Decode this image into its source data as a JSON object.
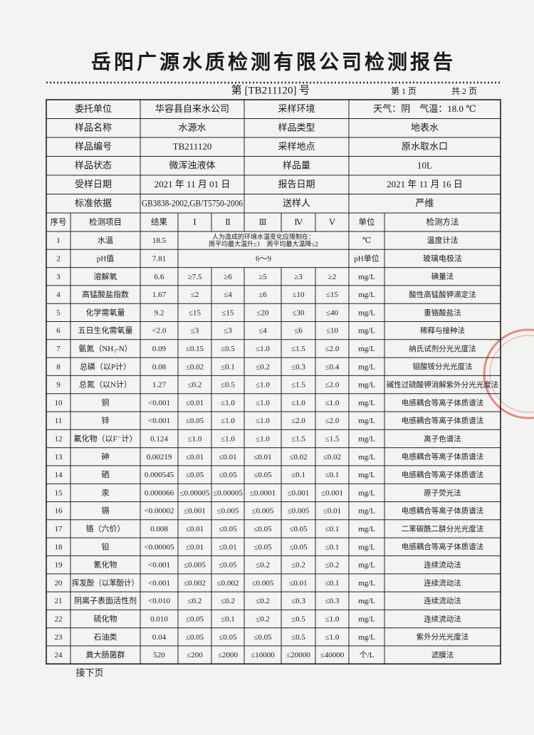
{
  "header": {
    "title": "岳阳广源水质检测有限公司检测报告",
    "report_no": "第 [TB211120] 号",
    "page": "第 1 页",
    "total": "共 2 页"
  },
  "info": {
    "rows": [
      [
        "委托单位",
        "华容县自来水公司",
        "采样环境",
        "天气：阴　气温：18.0 ℃"
      ],
      [
        "样品名称",
        "水源水",
        "样品类型",
        "地表水"
      ],
      [
        "样品编号",
        "TB211120",
        "采样地点",
        "原水取水口"
      ],
      [
        "样品状态",
        "微浑浊液体",
        "样品量",
        "10L"
      ],
      [
        "受样日期",
        "2021 年 11 月 01 日",
        "报告日期",
        "2021 年 11 月 16 日"
      ],
      [
        "标准依据",
        "GB3838-2002,GB/T5750-2006",
        "送样人",
        "严维"
      ]
    ]
  },
  "table": {
    "columns": [
      "序号",
      "检测项目",
      "结果",
      "Ⅰ",
      "Ⅱ",
      "Ⅲ",
      "Ⅳ",
      "Ⅴ",
      "单位",
      "检测方法"
    ],
    "rows": [
      [
        "1",
        "水温",
        "18.5",
        [
          "人为造成的环境水温变化应限制在：",
          "周平均最大温升≤1　周平均最大温降≤2"
        ],
        "℃",
        "温度计法"
      ],
      [
        "2",
        "pH值",
        "7.81",
        [
          "6～9"
        ],
        "pH单位",
        "玻璃电极法"
      ],
      [
        "3",
        "溶解氧",
        "6.6",
        "≥7.5",
        "≥6",
        "≥5",
        "≥3",
        "≥2",
        "mg/L",
        "碘量法"
      ],
      [
        "4",
        "高锰酸盐指数",
        "1.67",
        "≤2",
        "≤4",
        "≤6",
        "≤10",
        "≤15",
        "mg/L",
        "酸性高锰酸钾滴定法"
      ],
      [
        "5",
        "化学需氧量",
        "9.2",
        "≤15",
        "≤15",
        "≤20",
        "≤30",
        "≤40",
        "mg/L",
        "重铬酸盐法"
      ],
      [
        "6",
        "五日生化需氧量",
        "<2.0",
        "≤3",
        "≤3",
        "≤4",
        "≤6",
        "≤10",
        "mg/L",
        "稀释与接种法"
      ],
      [
        "7",
        "氨氮（NH₃-N）",
        "0.09",
        "≤0.15",
        "≤0.5",
        "≤1.0",
        "≤1.5",
        "≤2.0",
        "mg/L",
        "纳氏试剂分光光度法"
      ],
      [
        "8",
        "总磷（以P计）",
        "0.08",
        "≤0.02",
        "≤0.1",
        "≤0.2",
        "≤0.3",
        "≤0.4",
        "mg/L",
        "钼酸铵分光光度法"
      ],
      [
        "9",
        "总氮（以N计）",
        "1.27",
        "≤0.2",
        "≤0.5",
        "≤1.0",
        "≤1.5",
        "≤2.0",
        "mg/L",
        "碱性过硫酸钾消解紫外分光光度法"
      ],
      [
        "10",
        "铜",
        "<0.001",
        "≤0.01",
        "≤1.0",
        "≤1.0",
        "≤1.0",
        "≤1.0",
        "mg/L",
        "电感耦合等离子体质谱法"
      ],
      [
        "11",
        "锌",
        "<0.001",
        "≤0.05",
        "≤1.0",
        "≤1.0",
        "≤2.0",
        "≤2.0",
        "mg/L",
        "电感耦合等离子体质谱法"
      ],
      [
        "12",
        "氟化物（以F⁻计）",
        "0.124",
        "≤1.0",
        "≤1.0",
        "≤1.0",
        "≤1.5",
        "≤1.5",
        "mg/L",
        "离子色谱法"
      ],
      [
        "13",
        "砷",
        "0.00219",
        "≤0.01",
        "≤0.01",
        "≤0.01",
        "≤0.02",
        "≤0.02",
        "mg/L",
        "电感耦合等离子体质谱法"
      ],
      [
        "14",
        "硒",
        "0.000545",
        "≤0.05",
        "≤0.05",
        "≤0.05",
        "≤0.1",
        "≤0.1",
        "mg/L",
        "电感耦合等离子体质谱法"
      ],
      [
        "15",
        "汞",
        "0.000066",
        "≤0.00005",
        "≤0.00005",
        "≤0.0001",
        "≤0.001",
        "≤0.001",
        "mg/L",
        "原子荧光法"
      ],
      [
        "16",
        "镉",
        "<0.00002",
        "≤0.001",
        "≤0.005",
        "≤0.005",
        "≤0.005",
        "≤0.01",
        "mg/L",
        "电感耦合等离子体质谱法"
      ],
      [
        "17",
        "铬（六价）",
        "0.008",
        "≤0.01",
        "≤0.05",
        "≤0.05",
        "≤0.05",
        "≤0.1",
        "mg/L",
        "二苯碳酰二肼分光光度法"
      ],
      [
        "18",
        "铅",
        "<0.00005",
        "≤0.01",
        "≤0.01",
        "≤0.05",
        "≤0.05",
        "≤0.1",
        "mg/L",
        "电感耦合等离子体质谱法"
      ],
      [
        "19",
        "氰化物",
        "<0.001",
        "≤0.005",
        "≤0.05",
        "≤0.2",
        "≤0.2",
        "≤0.2",
        "mg/L",
        "连续流动法"
      ],
      [
        "20",
        "挥发酚（以苯酚计）",
        "<0.001",
        "≤0.002",
        "≤0.002",
        "≤0.005",
        "≤0.01",
        "≤0.1",
        "mg/L",
        "连续流动法"
      ],
      [
        "21",
        "阴离子表面活性剂",
        "<0.010",
        "≤0.2",
        "≤0.2",
        "≤0.2",
        "≤0.3",
        "≤0.3",
        "mg/L",
        "连续流动法"
      ],
      [
        "22",
        "硫化物",
        "0.010",
        "≤0.05",
        "≤0.1",
        "≤0.2",
        "≤0.5",
        "≤1.0",
        "mg/L",
        "连续流动法"
      ],
      [
        "23",
        "石油类",
        "0.04",
        "≤0.05",
        "≤0.05",
        "≤0.05",
        "≤0.5",
        "≤1.0",
        "mg/L",
        "紫外分光光度法"
      ],
      [
        "24",
        "粪大肠菌群",
        "520",
        "≤200",
        "≤2000",
        "≤10000",
        "≤20000",
        "≤40000",
        "个/L",
        "滤膜法"
      ]
    ]
  },
  "footer": {
    "note": "接下页"
  }
}
